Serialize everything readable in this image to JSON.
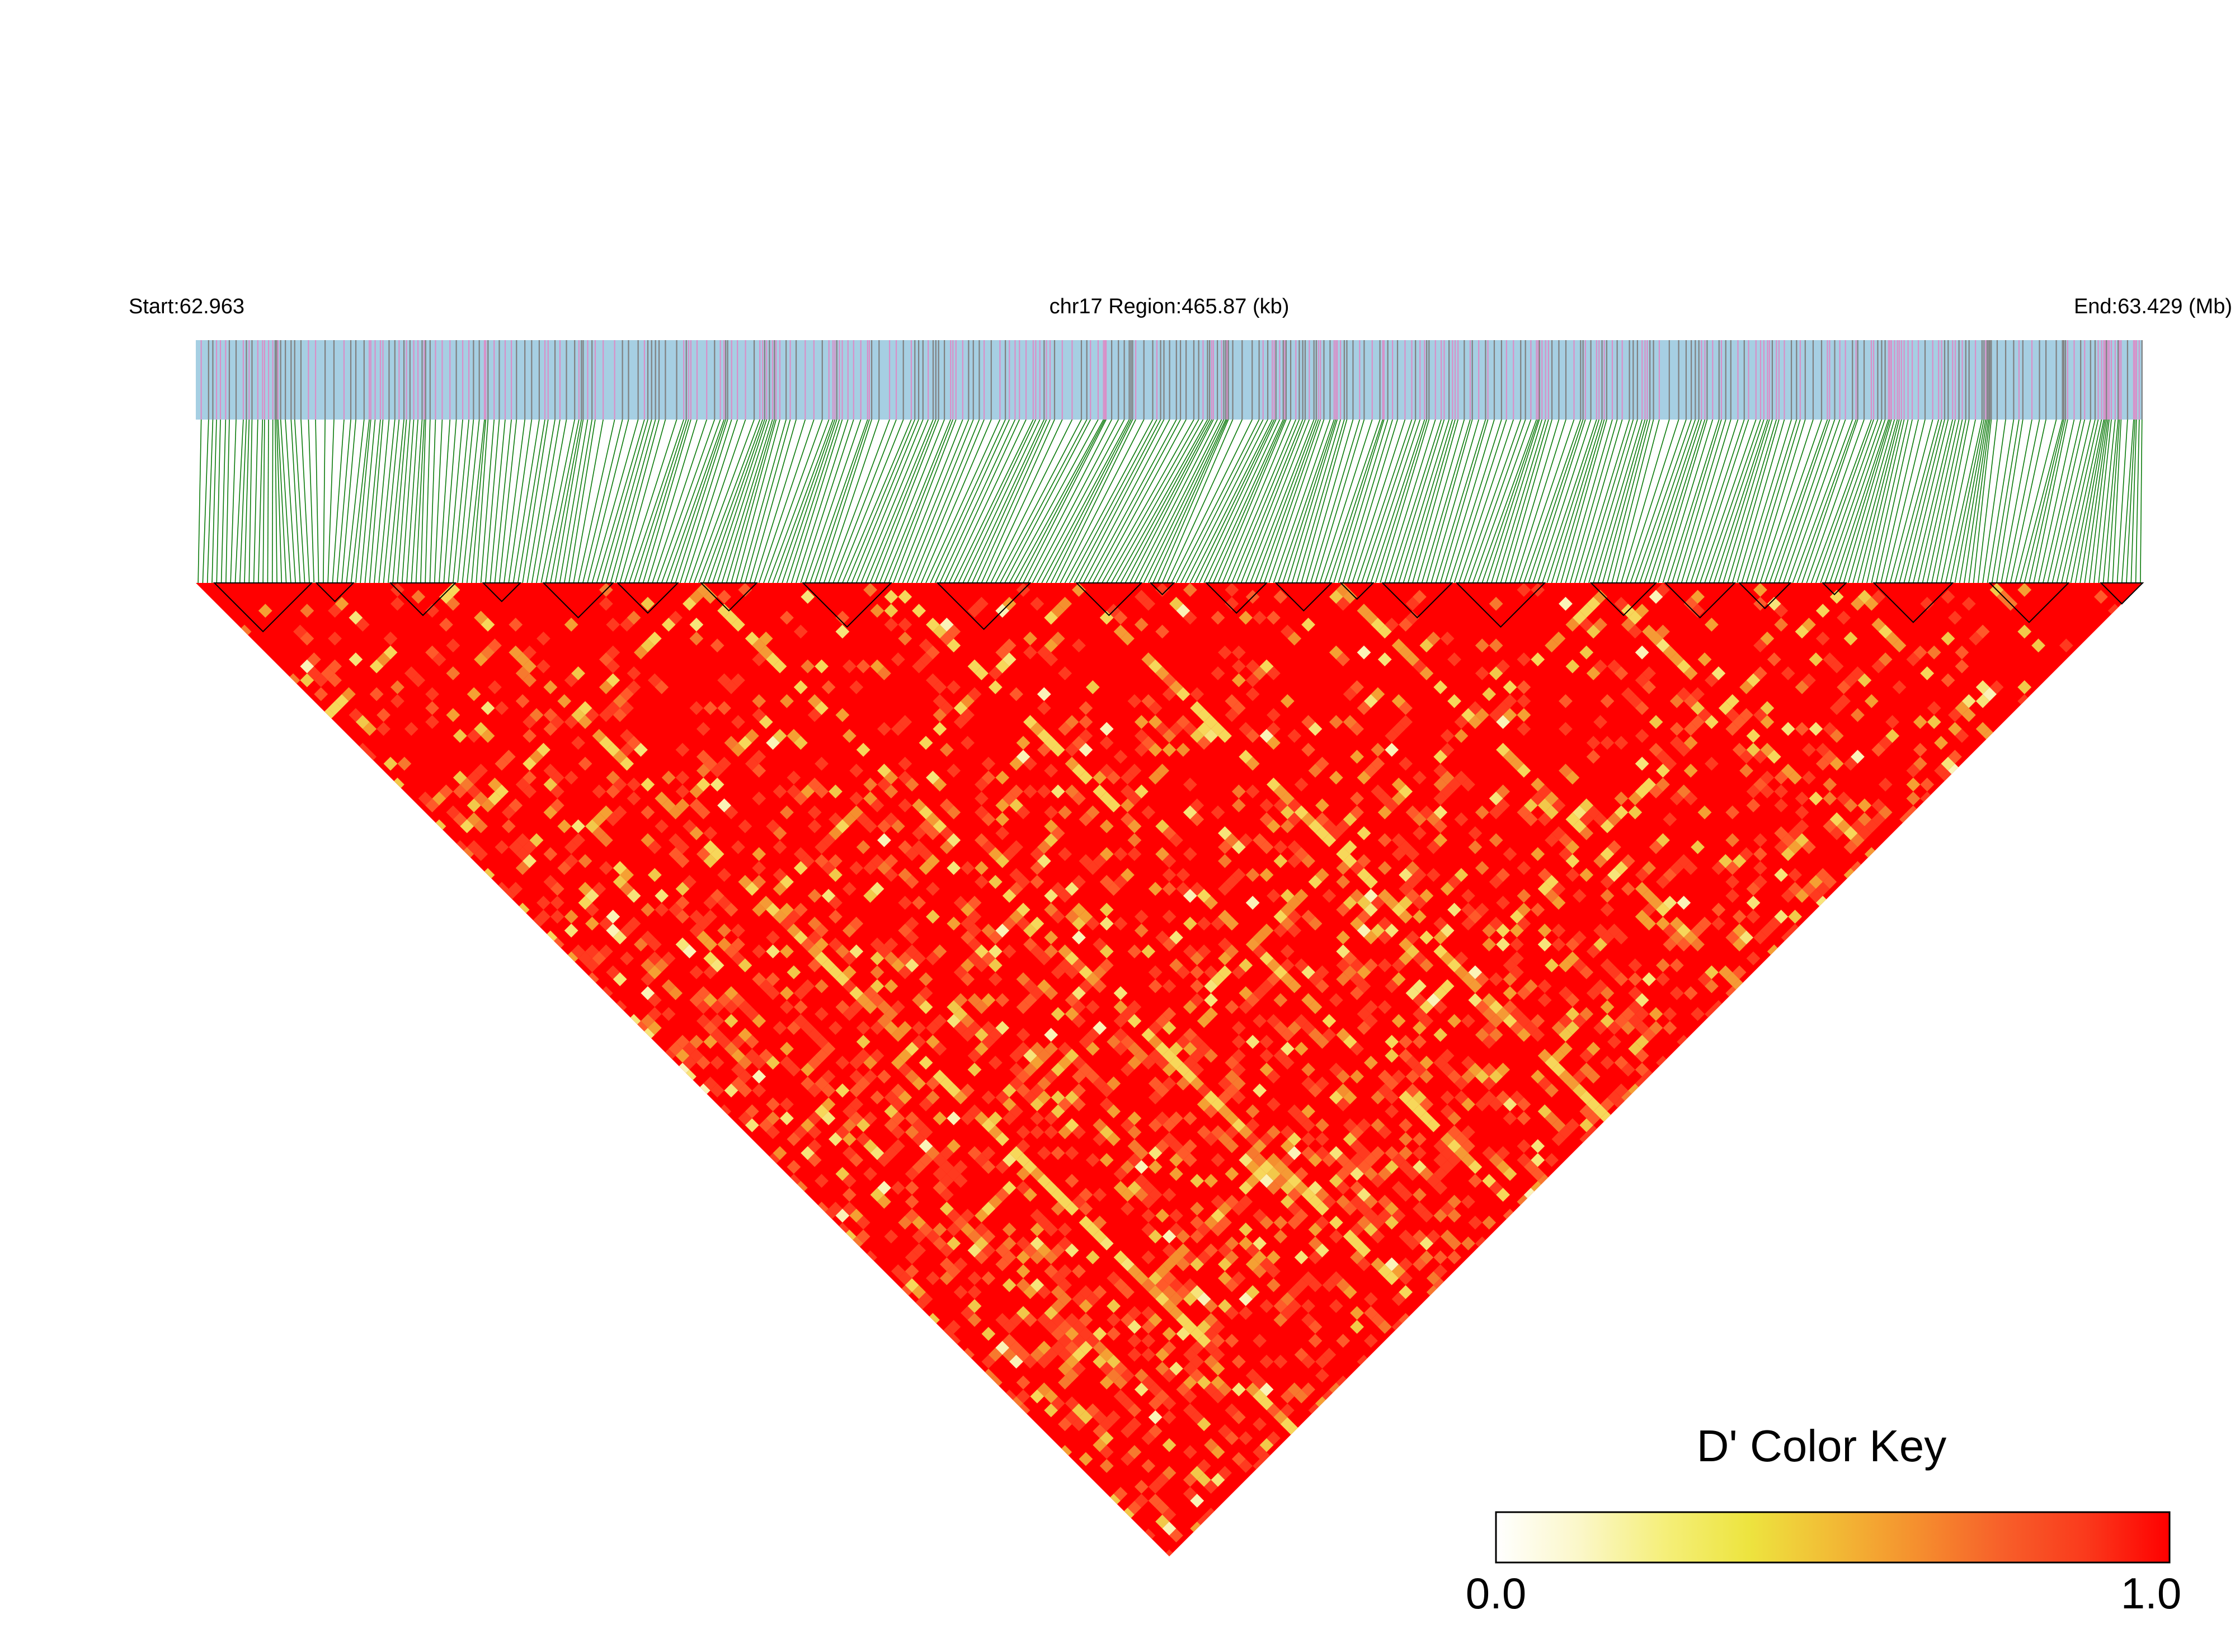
{
  "header": {
    "start_label": "Start:62.963",
    "region_label": "chr17 Region:465.87 (kb)",
    "end_label": "End:63.429 (Mb)"
  },
  "colors": {
    "snp_bar_background": "#a6cfe3",
    "snp_mark_pink": "#d98fc8",
    "snp_mark_gray": "#808080",
    "connector_lines": "#0a7a0a",
    "heatmap_base": "#ff0000",
    "block_outline": "#000000"
  },
  "legend": {
    "title": "D' Color Key",
    "min_label": "0.0",
    "max_label": "1.0",
    "gradient": [
      "#ffffff",
      "#fbf7c8",
      "#f5ef7a",
      "#ede43f",
      "#f2bb35",
      "#f58f2e",
      "#f7602a",
      "#fa3a1c",
      "#ff0000"
    ]
  },
  "chart_data": {
    "type": "heatmap",
    "title": "",
    "chromosome": "chr17",
    "region_start_mb": 62.963,
    "region_end_mb": 63.429,
    "region_length_kb": 465.87,
    "measure": "D'",
    "value_range": [
      0.0,
      1.0
    ],
    "snp_count_estimate": 420,
    "ld_blocks_estimate": 30
  }
}
